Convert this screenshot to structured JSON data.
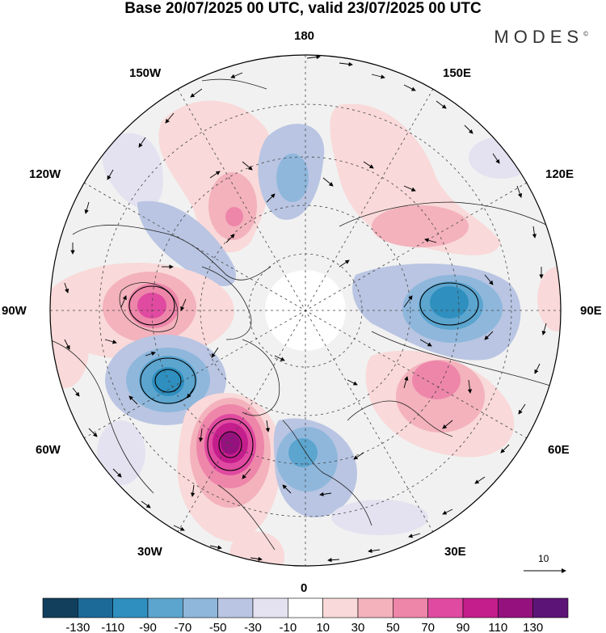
{
  "title": "Base 20/07/2025 00 UTC, valid 23/07/2025 00 UTC",
  "brand": "MODES",
  "brand_mark": "©",
  "longitude_labels": {
    "n180": "180",
    "w150": "150W",
    "e150": "150E",
    "w120": "120W",
    "e120": "120E",
    "w90": "90W",
    "e90": "90E",
    "w60": "60W",
    "e60": "60E",
    "w30": "30W",
    "e30": "30E",
    "s0": "0"
  },
  "reference_vector": "10",
  "colorbar": {
    "labels": [
      "-130",
      "-110",
      "-90",
      "-70",
      "-50",
      "-30",
      "-10",
      "10",
      "30",
      "50",
      "70",
      "90",
      "110",
      "130"
    ],
    "colors": [
      "#123f5c",
      "#1c6a98",
      "#2f8fbe",
      "#5ba5cf",
      "#8fb7dc",
      "#b9c5e2",
      "#e4e2f0",
      "#ffffff",
      "#f9d9d9",
      "#f3b2bc",
      "#ee86aa",
      "#e04aa0",
      "#c41d8c",
      "#95117e",
      "#5c1576"
    ]
  },
  "anomaly_centers": [
    {
      "name": "positive-north-atlantic",
      "sign": "positive",
      "peak": 130
    },
    {
      "name": "negative-labrador",
      "sign": "negative",
      "peak": -110
    },
    {
      "name": "positive-hudson",
      "sign": "positive",
      "peak": 90
    },
    {
      "name": "negative-siberia",
      "sign": "negative",
      "peak": -90
    },
    {
      "name": "positive-west-siberia",
      "sign": "positive",
      "peak": 70
    },
    {
      "name": "negative-europe",
      "sign": "negative",
      "peak": -70
    }
  ]
}
